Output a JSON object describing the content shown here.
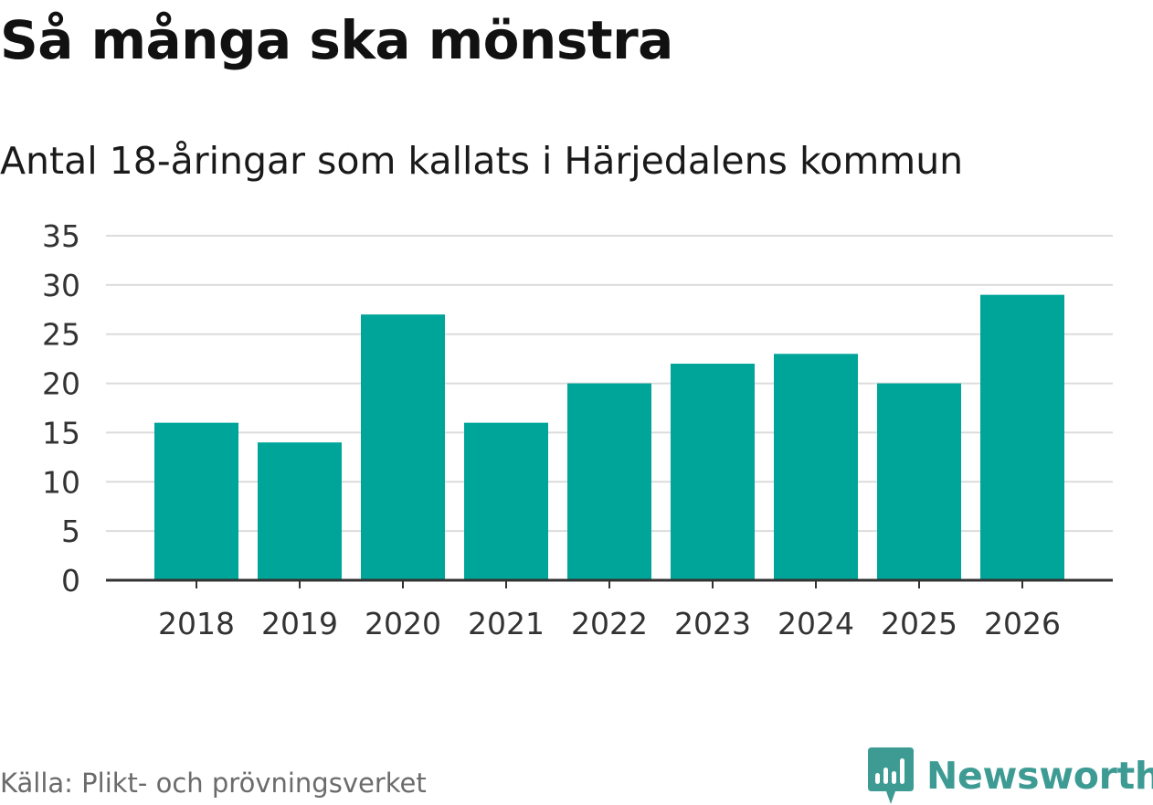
{
  "header": {
    "title": "Så många ska mönstra",
    "subtitle": "Antal 18-åringar som kallats i Härjedalens kommun"
  },
  "footer": {
    "source": "Källa: Plikt- och prövningsverket",
    "brand": "Newsworthy"
  },
  "colors": {
    "bar": "#00a59a",
    "grid": "#dcdcdc",
    "axis": "#333333",
    "brand": "#3d9b94"
  },
  "chart_data": {
    "type": "bar",
    "title": "Så många ska mönstra",
    "subtitle": "Antal 18-åringar som kallats i Härjedalens kommun",
    "categories": [
      "2018",
      "2019",
      "2020",
      "2021",
      "2022",
      "2023",
      "2024",
      "2025",
      "2026"
    ],
    "values": [
      16,
      14,
      27,
      16,
      20,
      22,
      23,
      20,
      29
    ],
    "yticks": [
      0,
      5,
      10,
      15,
      20,
      25,
      30,
      35
    ],
    "ylim": [
      0,
      35
    ],
    "xlabel": "",
    "ylabel": "",
    "grid": true,
    "legend": "none"
  }
}
